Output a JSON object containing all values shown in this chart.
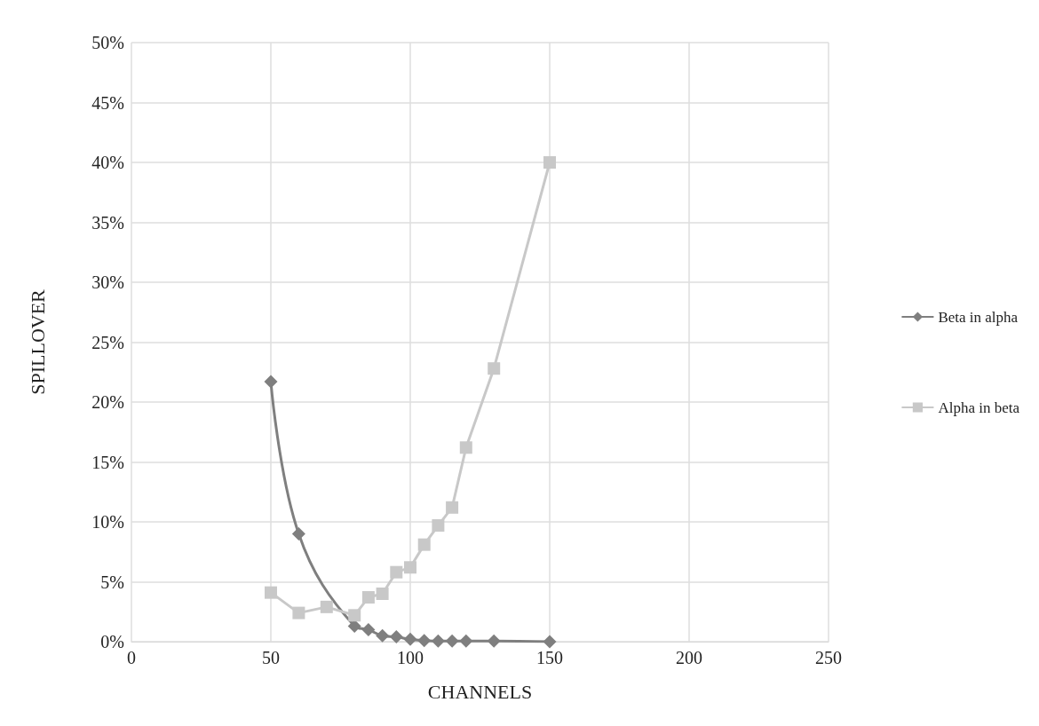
{
  "chart_data": {
    "type": "line",
    "xlabel": "CHANNELS",
    "ylabel": "SPILLOVER",
    "xlim": [
      0,
      250
    ],
    "xticks": [
      0,
      50,
      100,
      150,
      200,
      250
    ],
    "ylim": [
      0,
      50
    ],
    "yticks": [
      {
        "value": 0,
        "label": "0%"
      },
      {
        "value": 5,
        "label": "5%"
      },
      {
        "value": 10,
        "label": "10%"
      },
      {
        "value": 15,
        "label": "15%"
      },
      {
        "value": 20,
        "label": "20%"
      },
      {
        "value": 25,
        "label": "25%"
      },
      {
        "value": 30,
        "label": "30%"
      },
      {
        "value": 35,
        "label": "35%"
      },
      {
        "value": 40,
        "label": "40%"
      },
      {
        "value": 45,
        "label": "45%"
      },
      {
        "value": 50,
        "label": "50%"
      }
    ],
    "grid": true,
    "legend": "right",
    "series": [
      {
        "name": "Beta in alpha",
        "color": "#7f7f7f",
        "marker": "diamond",
        "x": [
          50,
          60,
          70,
          80,
          85,
          90,
          95,
          100,
          105,
          110,
          115,
          120,
          130,
          150
        ],
        "values": [
          21.7,
          9.0,
          null,
          1.3,
          1.0,
          0.5,
          0.4,
          0.2,
          0.1,
          0.05,
          0.05,
          0.05,
          0.05,
          0
        ]
      },
      {
        "name": "Alpha in beta",
        "color": "#c8c8c8",
        "marker": "square",
        "x": [
          50,
          60,
          70,
          80,
          85,
          90,
          95,
          100,
          105,
          110,
          115,
          120,
          130,
          150
        ],
        "values": [
          4.1,
          2.4,
          2.9,
          2.2,
          3.7,
          4.0,
          5.8,
          6.2,
          8.1,
          9.7,
          11.2,
          16.2,
          22.8,
          40
        ]
      }
    ]
  }
}
